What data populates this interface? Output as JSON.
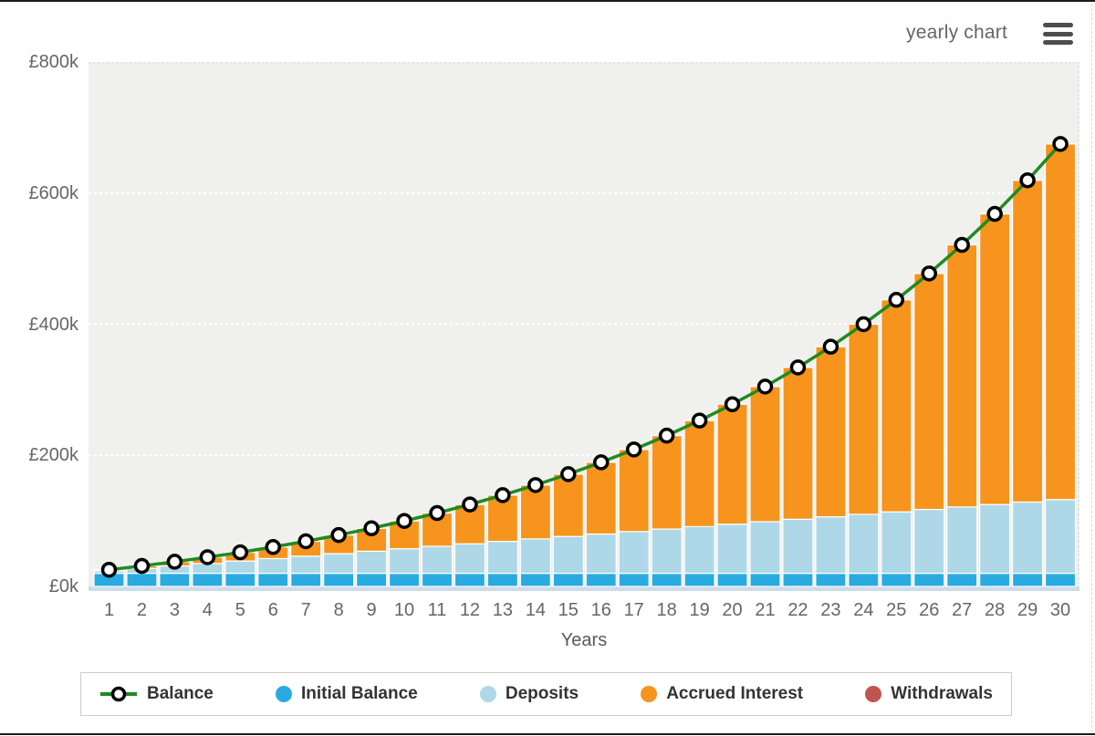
{
  "header": {
    "mode_label": "yearly chart",
    "menu_icon": "hamburger-icon"
  },
  "axes": {
    "x_title": "Years",
    "y_ticks": [
      {
        "label": "£800k",
        "value": 800000
      },
      {
        "label": "£600k",
        "value": 600000
      },
      {
        "label": "£400k",
        "value": 400000
      },
      {
        "label": "£200k",
        "value": 200000
      },
      {
        "label": "£0k",
        "value": 0
      }
    ]
  },
  "legend": {
    "items": [
      {
        "label": "Balance",
        "type": "line-marker",
        "color": "#1f8b1f"
      },
      {
        "label": "Initial Balance",
        "type": "dot",
        "color": "#29abe2"
      },
      {
        "label": "Deposits",
        "type": "dot",
        "color": "#aed8e8"
      },
      {
        "label": "Accrued Interest",
        "type": "dot",
        "color": "#f7941d"
      },
      {
        "label": "Withdrawals",
        "type": "dot",
        "color": "#c0544f"
      }
    ]
  },
  "chart_data": {
    "type": "bar",
    "subtype": "stacked-bars-with-line",
    "title": "",
    "xlabel": "Years",
    "ylabel": "",
    "ylim": [
      0,
      800000
    ],
    "grid_values": [
      200000,
      400000,
      600000
    ],
    "legend_position": "bottom",
    "x": [
      1,
      2,
      3,
      4,
      5,
      6,
      7,
      8,
      9,
      10,
      11,
      12,
      13,
      14,
      15,
      16,
      17,
      18,
      19,
      20,
      21,
      22,
      23,
      24,
      25,
      26,
      27,
      28,
      29,
      30
    ],
    "initial_balance": 20000,
    "annual_deposit": 3750,
    "series": [
      {
        "name": "Initial Balance",
        "type": "bar",
        "color": "#29abe2",
        "values": [
          20000,
          20000,
          20000,
          20000,
          20000,
          20000,
          20000,
          20000,
          20000,
          20000,
          20000,
          20000,
          20000,
          20000,
          20000,
          20000,
          20000,
          20000,
          20000,
          20000,
          20000,
          20000,
          20000,
          20000,
          20000,
          20000,
          20000,
          20000,
          20000,
          20000
        ]
      },
      {
        "name": "Deposits",
        "type": "bar",
        "color": "#aed8e8",
        "values": [
          3750,
          7500,
          11250,
          15000,
          18750,
          22500,
          26250,
          30000,
          33750,
          37500,
          41250,
          45000,
          48750,
          52500,
          56250,
          60000,
          63750,
          67500,
          71250,
          75000,
          78750,
          82500,
          86250,
          90000,
          93750,
          97500,
          101250,
          105000,
          108750,
          112500
        ]
      },
      {
        "name": "Accrued Interest",
        "type": "bar",
        "color": "#f7941d",
        "values": [
          1670,
          3790,
          6410,
          9550,
          13270,
          17620,
          22640,
          28390,
          34940,
          42350,
          50690,
          60040,
          70480,
          82110,
          95020,
          109320,
          125130,
          142570,
          161780,
          182910,
          206120,
          231580,
          259470,
          290010,
          323410,
          359910,
          399770,
          443280,
          490730,
          542460
        ]
      },
      {
        "name": "Withdrawals",
        "type": "bar",
        "color": "#c0544f",
        "values": [
          0,
          0,
          0,
          0,
          0,
          0,
          0,
          0,
          0,
          0,
          0,
          0,
          0,
          0,
          0,
          0,
          0,
          0,
          0,
          0,
          0,
          0,
          0,
          0,
          0,
          0,
          0,
          0,
          0,
          0
        ]
      },
      {
        "name": "Balance",
        "type": "line",
        "color": "#1f8b1f",
        "marker": "open-circle",
        "values": [
          25420,
          31290,
          37660,
          44550,
          52020,
          60120,
          68890,
          78390,
          88690,
          99850,
          111940,
          125040,
          139230,
          154610,
          171270,
          189320,
          208880,
          230070,
          253030,
          277910,
          304870,
          334080,
          365720,
          400010,
          437160,
          477410,
          521020,
          568280,
          619480,
          674960
        ]
      }
    ],
    "style": {
      "plot_bg": "#f0f0ee",
      "plot_bottom_strip": "#cddbea",
      "grid_color": "#ffffff",
      "frame_dash_color": "#dddddd",
      "axis_text_color": "#666666",
      "marker_fill": "#ffffff",
      "marker_ring": "#000000"
    }
  }
}
